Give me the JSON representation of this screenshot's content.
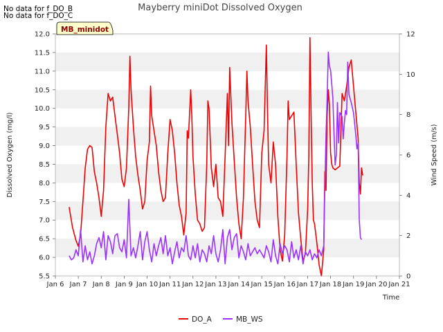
{
  "header_notes": [
    "No data for f_DO_B",
    "No data for f_DO_C"
  ],
  "chart_data": {
    "type": "line",
    "title": "Mayberry miniDot Dissolved Oxygen",
    "xlabel": "Time",
    "ylabel_left": "Dissolved Oxygen (mg/l)",
    "ylabel_right": "Wind Speed (m/s)",
    "site_label": "MB_minidot",
    "x_range": [
      6,
      21
    ],
    "x_ticks": [
      {
        "day": 6,
        "label": "Jan 6"
      },
      {
        "day": 7,
        "label": "Jan 7"
      },
      {
        "day": 8,
        "label": "Jan 8"
      },
      {
        "day": 9,
        "label": "Jan 9"
      },
      {
        "day": 10,
        "label": "Jan 10"
      },
      {
        "day": 11,
        "label": "Jan 11"
      },
      {
        "day": 12,
        "label": "Jan 12"
      },
      {
        "day": 13,
        "label": "Jan 13"
      },
      {
        "day": 14,
        "label": "Jan 14"
      },
      {
        "day": 15,
        "label": "Jan 15"
      },
      {
        "day": 16,
        "label": "Jan 16"
      },
      {
        "day": 17,
        "label": "Jan 17"
      },
      {
        "day": 18,
        "label": "Jan 18"
      },
      {
        "day": 19,
        "label": "Jan 19"
      },
      {
        "day": 20,
        "label": "Jan 20"
      },
      {
        "day": 21,
        "label": "Jan 21"
      }
    ],
    "y_left_range": [
      5.5,
      12.0
    ],
    "y_left_ticks": [
      "5.5",
      "6.0",
      "6.5",
      "7.0",
      "7.5",
      "8.0",
      "8.5",
      "9.0",
      "9.5",
      "10.0",
      "10.5",
      "11.0",
      "11.5",
      "12.0"
    ],
    "y_right_range": [
      0,
      12
    ],
    "y_right_ticks": [
      "0",
      "2",
      "4",
      "6",
      "8",
      "10",
      "12"
    ],
    "grid": "horizontal bands",
    "legend_position": "bottom-center",
    "series": [
      {
        "name": "DO_A",
        "axis": "left",
        "color": "#ee0000",
        "points": [
          [
            6.6,
            7.35
          ],
          [
            6.75,
            6.8
          ],
          [
            6.9,
            6.45
          ],
          [
            7.0,
            6.3
          ],
          [
            7.1,
            6.6
          ],
          [
            7.2,
            7.5
          ],
          [
            7.3,
            8.4
          ],
          [
            7.4,
            8.9
          ],
          [
            7.5,
            9.0
          ],
          [
            7.6,
            8.95
          ],
          [
            7.7,
            8.3
          ],
          [
            7.8,
            8.0
          ],
          [
            7.9,
            7.6
          ],
          [
            8.0,
            7.1
          ],
          [
            8.1,
            7.8
          ],
          [
            8.2,
            9.5
          ],
          [
            8.3,
            10.4
          ],
          [
            8.4,
            10.2
          ],
          [
            8.5,
            10.3
          ],
          [
            8.6,
            9.8
          ],
          [
            8.7,
            9.3
          ],
          [
            8.8,
            8.8
          ],
          [
            8.9,
            8.1
          ],
          [
            9.0,
            7.9
          ],
          [
            9.1,
            8.4
          ],
          [
            9.2,
            10.0
          ],
          [
            9.25,
            11.4
          ],
          [
            9.3,
            10.5
          ],
          [
            9.4,
            9.5
          ],
          [
            9.5,
            8.7
          ],
          [
            9.6,
            8.2
          ],
          [
            9.7,
            7.8
          ],
          [
            9.8,
            7.3
          ],
          [
            9.9,
            7.5
          ],
          [
            10.0,
            8.6
          ],
          [
            10.1,
            9.1
          ],
          [
            10.15,
            10.6
          ],
          [
            10.2,
            9.8
          ],
          [
            10.3,
            9.4
          ],
          [
            10.4,
            9.0
          ],
          [
            10.5,
            8.3
          ],
          [
            10.6,
            7.8
          ],
          [
            10.7,
            7.5
          ],
          [
            10.8,
            7.6
          ],
          [
            10.9,
            8.8
          ],
          [
            11.0,
            9.7
          ],
          [
            11.1,
            9.4
          ],
          [
            11.2,
            8.8
          ],
          [
            11.3,
            8.0
          ],
          [
            11.4,
            7.4
          ],
          [
            11.5,
            7.1
          ],
          [
            11.6,
            6.6
          ],
          [
            11.7,
            7.2
          ],
          [
            11.75,
            9.4
          ],
          [
            11.8,
            9.2
          ],
          [
            11.9,
            10.5
          ],
          [
            11.95,
            9.8
          ],
          [
            12.0,
            8.7
          ],
          [
            12.1,
            7.7
          ],
          [
            12.2,
            7.0
          ],
          [
            12.3,
            6.9
          ],
          [
            12.4,
            6.7
          ],
          [
            12.5,
            6.8
          ],
          [
            12.6,
            8.5
          ],
          [
            12.65,
            10.2
          ],
          [
            12.7,
            10.0
          ],
          [
            12.8,
            8.4
          ],
          [
            12.9,
            7.9
          ],
          [
            13.0,
            8.5
          ],
          [
            13.1,
            7.6
          ],
          [
            13.2,
            7.5
          ],
          [
            13.3,
            7.1
          ],
          [
            13.4,
            8.7
          ],
          [
            13.5,
            10.4
          ],
          [
            13.55,
            9.0
          ],
          [
            13.6,
            11.1
          ],
          [
            13.7,
            9.6
          ],
          [
            13.8,
            8.6
          ],
          [
            13.9,
            7.6
          ],
          [
            14.0,
            6.9
          ],
          [
            14.1,
            6.5
          ],
          [
            14.2,
            7.6
          ],
          [
            14.3,
            9.8
          ],
          [
            14.35,
            11.0
          ],
          [
            14.4,
            10.2
          ],
          [
            14.5,
            9.5
          ],
          [
            14.6,
            8.5
          ],
          [
            14.7,
            7.5
          ],
          [
            14.8,
            7.0
          ],
          [
            14.9,
            6.8
          ],
          [
            15.0,
            8.8
          ],
          [
            15.1,
            9.4
          ],
          [
            15.2,
            11.7
          ],
          [
            15.25,
            9.9
          ],
          [
            15.3,
            8.5
          ],
          [
            15.4,
            8.0
          ],
          [
            15.5,
            9.1
          ],
          [
            15.6,
            8.5
          ],
          [
            15.7,
            7.1
          ],
          [
            15.8,
            6.2
          ],
          [
            15.9,
            5.9
          ],
          [
            16.0,
            6.6
          ],
          [
            16.1,
            8.7
          ],
          [
            16.15,
            10.2
          ],
          [
            16.2,
            9.7
          ],
          [
            16.3,
            9.8
          ],
          [
            16.4,
            9.9
          ],
          [
            16.5,
            8.5
          ],
          [
            16.6,
            7.2
          ],
          [
            16.7,
            6.5
          ],
          [
            16.8,
            5.9
          ],
          [
            16.9,
            6.1
          ],
          [
            17.0,
            7.3
          ],
          [
            17.05,
            8.7
          ],
          [
            17.1,
            11.9
          ],
          [
            17.15,
            9.9
          ],
          [
            17.2,
            8.0
          ],
          [
            17.25,
            7.0
          ],
          [
            17.3,
            6.9
          ],
          [
            17.4,
            6.4
          ],
          [
            17.5,
            5.8
          ],
          [
            17.6,
            5.5
          ],
          [
            17.7,
            6.2
          ],
          [
            17.75,
            8.3
          ],
          [
            17.8,
            7.8
          ],
          [
            17.85,
            9.8
          ],
          [
            17.9,
            10.5
          ],
          [
            17.95,
            10.1
          ],
          [
            18.0,
            8.8
          ],
          [
            18.05,
            8.5
          ],
          [
            18.1,
            8.4
          ],
          [
            18.2,
            8.35
          ],
          [
            18.3,
            8.4
          ],
          [
            18.4,
            8.45
          ],
          [
            18.5,
            10.4
          ],
          [
            18.6,
            10.2
          ],
          [
            18.7,
            10.6
          ],
          [
            18.8,
            11.1
          ],
          [
            18.9,
            11.3
          ],
          [
            19.0,
            10.6
          ],
          [
            19.1,
            9.9
          ],
          [
            19.2,
            9.2
          ],
          [
            19.25,
            8.0
          ],
          [
            19.3,
            7.7
          ],
          [
            19.35,
            8.4
          ],
          [
            19.4,
            8.2
          ]
        ]
      },
      {
        "name": "MB_WS",
        "axis": "right",
        "color": "#9b30ff",
        "points": [
          [
            6.6,
            1.0
          ],
          [
            6.7,
            0.8
          ],
          [
            6.8,
            0.9
          ],
          [
            6.9,
            1.3
          ],
          [
            7.0,
            1.0
          ],
          [
            7.1,
            2.3
          ],
          [
            7.2,
            0.7
          ],
          [
            7.3,
            1.5
          ],
          [
            7.4,
            0.8
          ],
          [
            7.5,
            1.2
          ],
          [
            7.6,
            0.6
          ],
          [
            7.7,
            1.0
          ],
          [
            7.8,
            1.6
          ],
          [
            7.9,
            1.9
          ],
          [
            8.0,
            1.4
          ],
          [
            8.1,
            2.2
          ],
          [
            8.2,
            0.8
          ],
          [
            8.3,
            2.0
          ],
          [
            8.4,
            1.7
          ],
          [
            8.5,
            1.1
          ],
          [
            8.6,
            2.0
          ],
          [
            8.7,
            2.1
          ],
          [
            8.8,
            1.4
          ],
          [
            8.9,
            1.2
          ],
          [
            9.0,
            1.8
          ],
          [
            9.1,
            0.9
          ],
          [
            9.2,
            3.8
          ],
          [
            9.3,
            1.0
          ],
          [
            9.4,
            1.4
          ],
          [
            9.5,
            0.9
          ],
          [
            9.6,
            1.5
          ],
          [
            9.7,
            2.2
          ],
          [
            9.8,
            0.8
          ],
          [
            9.9,
            1.7
          ],
          [
            10.0,
            2.2
          ],
          [
            10.1,
            1.3
          ],
          [
            10.2,
            0.7
          ],
          [
            10.3,
            1.6
          ],
          [
            10.4,
            1.0
          ],
          [
            10.5,
            1.5
          ],
          [
            10.6,
            1.9
          ],
          [
            10.7,
            1.1
          ],
          [
            10.8,
            2.0
          ],
          [
            10.9,
            1.0
          ],
          [
            11.0,
            1.4
          ],
          [
            11.1,
            0.6
          ],
          [
            11.2,
            1.2
          ],
          [
            11.3,
            1.7
          ],
          [
            11.4,
            0.9
          ],
          [
            11.5,
            1.4
          ],
          [
            11.6,
            1.2
          ],
          [
            11.7,
            2.0
          ],
          [
            11.8,
            1.0
          ],
          [
            11.9,
            0.8
          ],
          [
            12.0,
            1.5
          ],
          [
            12.1,
            0.9
          ],
          [
            12.2,
            1.6
          ],
          [
            12.3,
            0.7
          ],
          [
            12.4,
            1.3
          ],
          [
            12.5,
            1.1
          ],
          [
            12.6,
            0.7
          ],
          [
            12.7,
            1.5
          ],
          [
            12.8,
            1.1
          ],
          [
            12.9,
            2.0
          ],
          [
            13.0,
            1.1
          ],
          [
            13.1,
            0.7
          ],
          [
            13.2,
            1.3
          ],
          [
            13.3,
            2.3
          ],
          [
            13.4,
            0.6
          ],
          [
            13.5,
            1.9
          ],
          [
            13.6,
            2.3
          ],
          [
            13.7,
            1.3
          ],
          [
            13.8,
            1.9
          ],
          [
            13.9,
            2.1
          ],
          [
            14.0,
            0.9
          ],
          [
            14.1,
            1.5
          ],
          [
            14.2,
            1.2
          ],
          [
            14.3,
            0.8
          ],
          [
            14.4,
            1.6
          ],
          [
            14.5,
            1.0
          ],
          [
            14.6,
            1.2
          ],
          [
            14.7,
            1.4
          ],
          [
            14.8,
            1.1
          ],
          [
            14.9,
            1.3
          ],
          [
            15.0,
            1.1
          ],
          [
            15.1,
            0.9
          ],
          [
            15.2,
            1.5
          ],
          [
            15.3,
            1.2
          ],
          [
            15.4,
            0.7
          ],
          [
            15.5,
            1.8
          ],
          [
            15.6,
            1.0
          ],
          [
            15.7,
            0.6
          ],
          [
            15.8,
            1.6
          ],
          [
            15.9,
            1.1
          ],
          [
            16.0,
            1.5
          ],
          [
            16.1,
            1.3
          ],
          [
            16.2,
            0.7
          ],
          [
            16.3,
            1.7
          ],
          [
            16.4,
            0.9
          ],
          [
            16.5,
            1.3
          ],
          [
            16.6,
            0.8
          ],
          [
            16.7,
            1.5
          ],
          [
            16.8,
            0.6
          ],
          [
            16.9,
            1.2
          ],
          [
            17.0,
            1.0
          ],
          [
            17.1,
            1.3
          ],
          [
            17.2,
            0.8
          ],
          [
            17.3,
            1.1
          ],
          [
            17.4,
            0.9
          ],
          [
            17.5,
            1.3
          ],
          [
            17.6,
            1.0
          ],
          [
            17.7,
            1.5
          ],
          [
            17.75,
            4.4
          ],
          [
            17.8,
            7.0
          ],
          [
            17.85,
            8.8
          ],
          [
            17.9,
            11.1
          ],
          [
            17.95,
            10.4
          ],
          [
            18.0,
            10.2
          ],
          [
            18.05,
            9.5
          ],
          [
            18.1,
            8.8
          ],
          [
            18.15,
            7.0
          ],
          [
            18.2,
            5.5
          ],
          [
            18.25,
            6.0
          ],
          [
            18.3,
            8.6
          ],
          [
            18.35,
            6.6
          ],
          [
            18.4,
            8.1
          ],
          [
            18.5,
            7.9
          ],
          [
            18.55,
            6.8
          ],
          [
            18.6,
            7.6
          ],
          [
            18.65,
            8.2
          ],
          [
            18.7,
            8.0
          ],
          [
            18.75,
            10.6
          ],
          [
            18.8,
            9.0
          ],
          [
            18.9,
            8.6
          ],
          [
            19.0,
            8.1
          ],
          [
            19.1,
            7.0
          ],
          [
            19.15,
            6.3
          ],
          [
            19.2,
            6.6
          ],
          [
            19.25,
            2.8
          ],
          [
            19.3,
            1.9
          ],
          [
            19.35,
            1.8
          ]
        ]
      }
    ]
  }
}
